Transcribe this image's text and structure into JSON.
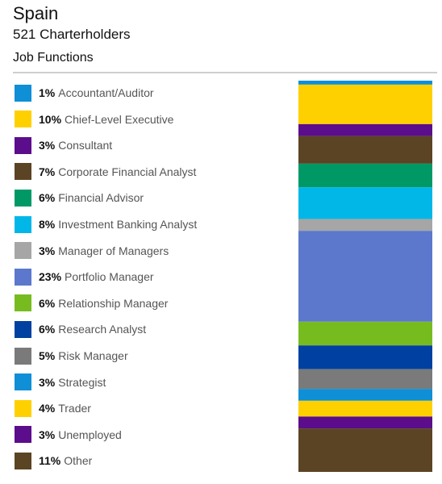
{
  "header": {
    "title": "Spain",
    "subtitle": "521 Charterholders",
    "section": "Job Functions"
  },
  "chart_data": {
    "type": "bar",
    "orientation": "vertical-stacked-100",
    "categories": [
      "Accountant/Auditor",
      "Chief-Level Executive",
      "Consultant",
      "Corporate Financial Analyst",
      "Financial Advisor",
      "Investment Banking Analyst",
      "Manager of Managers",
      "Portfolio Manager",
      "Relationship Manager",
      "Research Analyst",
      "Risk Manager",
      "Strategist",
      "Trader",
      "Unemployed",
      "Other"
    ],
    "values": [
      1,
      10,
      3,
      7,
      6,
      8,
      3,
      23,
      6,
      6,
      5,
      3,
      4,
      3,
      11
    ],
    "value_labels": [
      "1%",
      "10%",
      "3%",
      "7%",
      "6%",
      "8%",
      "3%",
      "23%",
      "6%",
      "6%",
      "5%",
      "3%",
      "4%",
      "3%",
      "11%"
    ],
    "colors": [
      "#0e8fd6",
      "#ffd000",
      "#5b0d8c",
      "#5b4424",
      "#009966",
      "#00b7e8",
      "#a6a6a6",
      "#5b78cc",
      "#77bc1f",
      "#0040a0",
      "#7a7a7a",
      "#0e8fd6",
      "#ffd000",
      "#5b0d8c",
      "#5b4424"
    ],
    "legend_position": "left",
    "grid": false
  }
}
